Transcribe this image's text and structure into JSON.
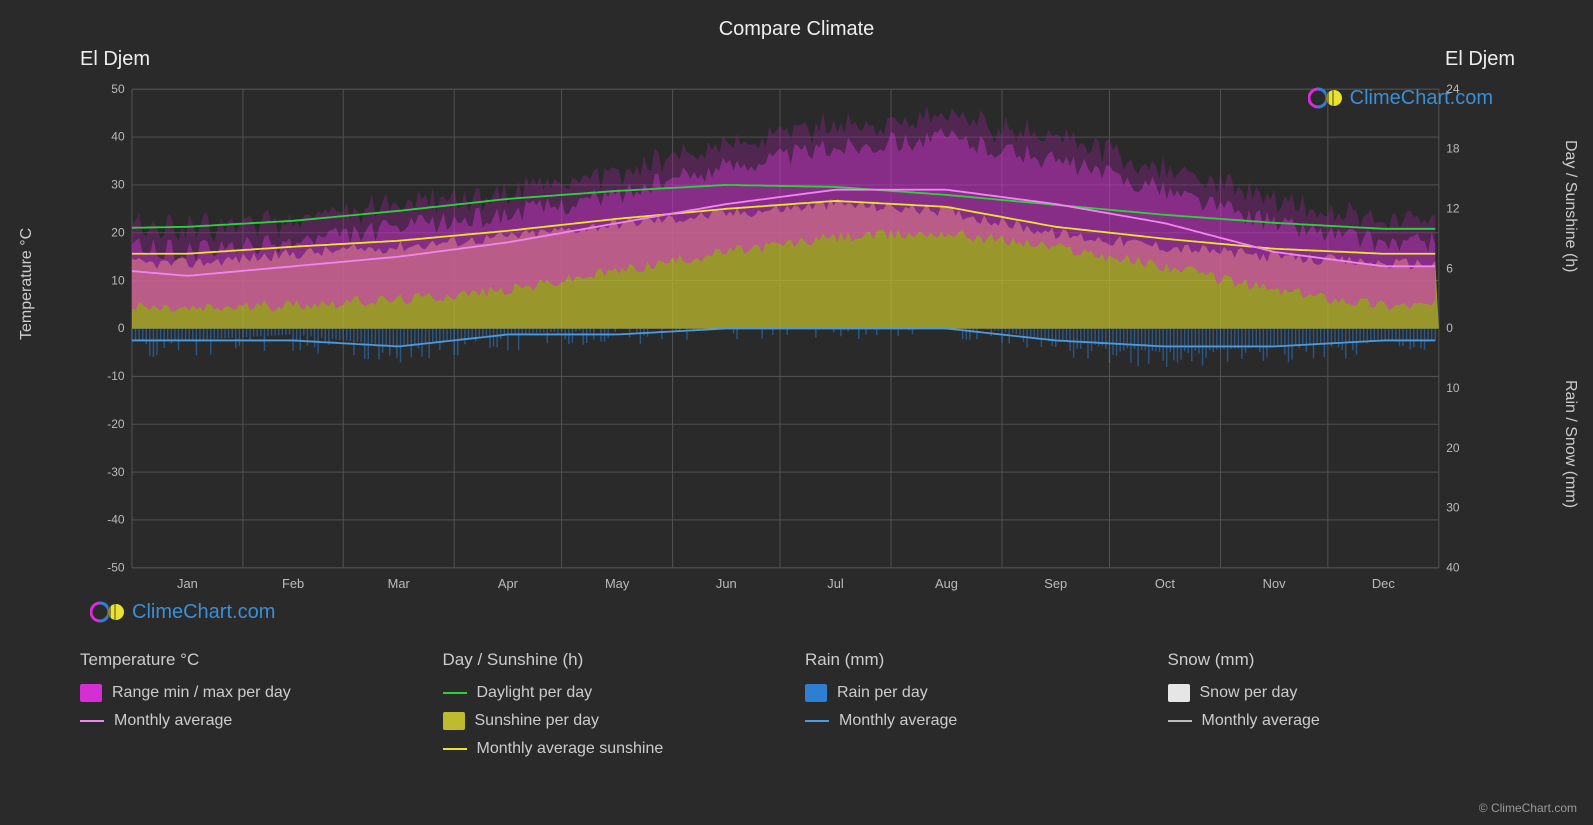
{
  "title": "Compare Climate",
  "location_left": "El Djem",
  "location_right": "El Djem",
  "watermark_text": "ClimeChart.com",
  "copyright": "© ClimeChart.com",
  "chart": {
    "background_color": "#2a2a2a",
    "plot_bg": "#2a2a2a",
    "grid_color": "#555555",
    "months": [
      "Jan",
      "Feb",
      "Mar",
      "Apr",
      "May",
      "Jun",
      "Jul",
      "Aug",
      "Sep",
      "Oct",
      "Nov",
      "Dec"
    ],
    "y_left": {
      "label": "Temperature °C",
      "min": -50,
      "max": 50,
      "step": 10,
      "ticks": [
        -50,
        -40,
        -30,
        -20,
        -10,
        0,
        10,
        20,
        30,
        40,
        50
      ]
    },
    "y_right_top": {
      "label": "Day / Sunshine (h)",
      "min": 0,
      "max": 24,
      "step": 6,
      "ticks": [
        0,
        6,
        12,
        18,
        24
      ]
    },
    "y_right_bot": {
      "label": "Rain / Snow (mm)",
      "min": 0,
      "max": 40,
      "step": 10,
      "ticks": [
        0,
        10,
        20,
        30,
        40
      ]
    },
    "colors": {
      "range_fill": "#d42ed4",
      "range_glow": "#9b1f9b",
      "monthly_avg_temp": "#f084f0",
      "daylight": "#2dd13a",
      "sunshine_fill": "#bfbb2e",
      "sunshine_line": "#e9e22e",
      "rain_fill": "#2e7fd1",
      "rain_line": "#4a9be0",
      "snow_fill": "#e6e6e6",
      "snow_line": "#bcbcbc"
    },
    "line_width": 2,
    "series": {
      "daylight_h": [
        10.2,
        10.8,
        11.8,
        13.0,
        13.8,
        14.4,
        14.2,
        13.4,
        12.4,
        11.4,
        10.6,
        10.0
      ],
      "sunshine_h": [
        6.5,
        7.5,
        8.2,
        9.2,
        10.5,
        11.5,
        12.5,
        11.8,
        9.5,
        8.2,
        7.2,
        6.5
      ],
      "monthly_avg_sun_h": [
        7.5,
        8.2,
        8.8,
        9.8,
        11.0,
        12.0,
        12.8,
        12.2,
        10.2,
        9.0,
        8.0,
        7.5
      ],
      "temp_min_c": [
        4,
        5,
        6,
        8,
        12,
        16,
        19,
        20,
        17,
        13,
        8,
        5
      ],
      "temp_max_c": [
        16,
        18,
        21,
        24,
        28,
        34,
        38,
        40,
        35,
        29,
        22,
        18
      ],
      "monthly_avg_temp_c": [
        11,
        13,
        15,
        18,
        22,
        26,
        29,
        29,
        26,
        22,
        16,
        13
      ],
      "rain_mm": [
        3,
        2,
        4,
        2,
        1,
        0,
        0,
        0,
        3,
        5,
        4,
        3
      ],
      "rain_monthly_mm": [
        2,
        2,
        3,
        1,
        1,
        0,
        0,
        0,
        2,
        3,
        3,
        2
      ],
      "snow_mm": [
        0,
        0,
        0,
        0,
        0,
        0,
        0,
        0,
        0,
        0,
        0,
        0
      ]
    }
  },
  "legend": {
    "col1": {
      "head": "Temperature °C",
      "items": [
        {
          "type": "swatch",
          "color": "#d42ed4",
          "label": "Range min / max per day"
        },
        {
          "type": "line",
          "color": "#f084f0",
          "label": "Monthly average"
        }
      ]
    },
    "col2": {
      "head": "Day / Sunshine (h)",
      "items": [
        {
          "type": "line",
          "color": "#2dd13a",
          "label": "Daylight per day"
        },
        {
          "type": "swatch",
          "color": "#bfbb2e",
          "label": "Sunshine per day"
        },
        {
          "type": "line",
          "color": "#e9e22e",
          "label": "Monthly average sunshine"
        }
      ]
    },
    "col3": {
      "head": "Rain (mm)",
      "items": [
        {
          "type": "swatch",
          "color": "#2e7fd1",
          "label": "Rain per day"
        },
        {
          "type": "line",
          "color": "#4a9be0",
          "label": "Monthly average"
        }
      ]
    },
    "col4": {
      "head": "Snow (mm)",
      "items": [
        {
          "type": "swatch",
          "color": "#e6e6e6",
          "label": "Snow per day"
        },
        {
          "type": "line",
          "color": "#bcbcbc",
          "label": "Monthly average"
        }
      ]
    }
  }
}
